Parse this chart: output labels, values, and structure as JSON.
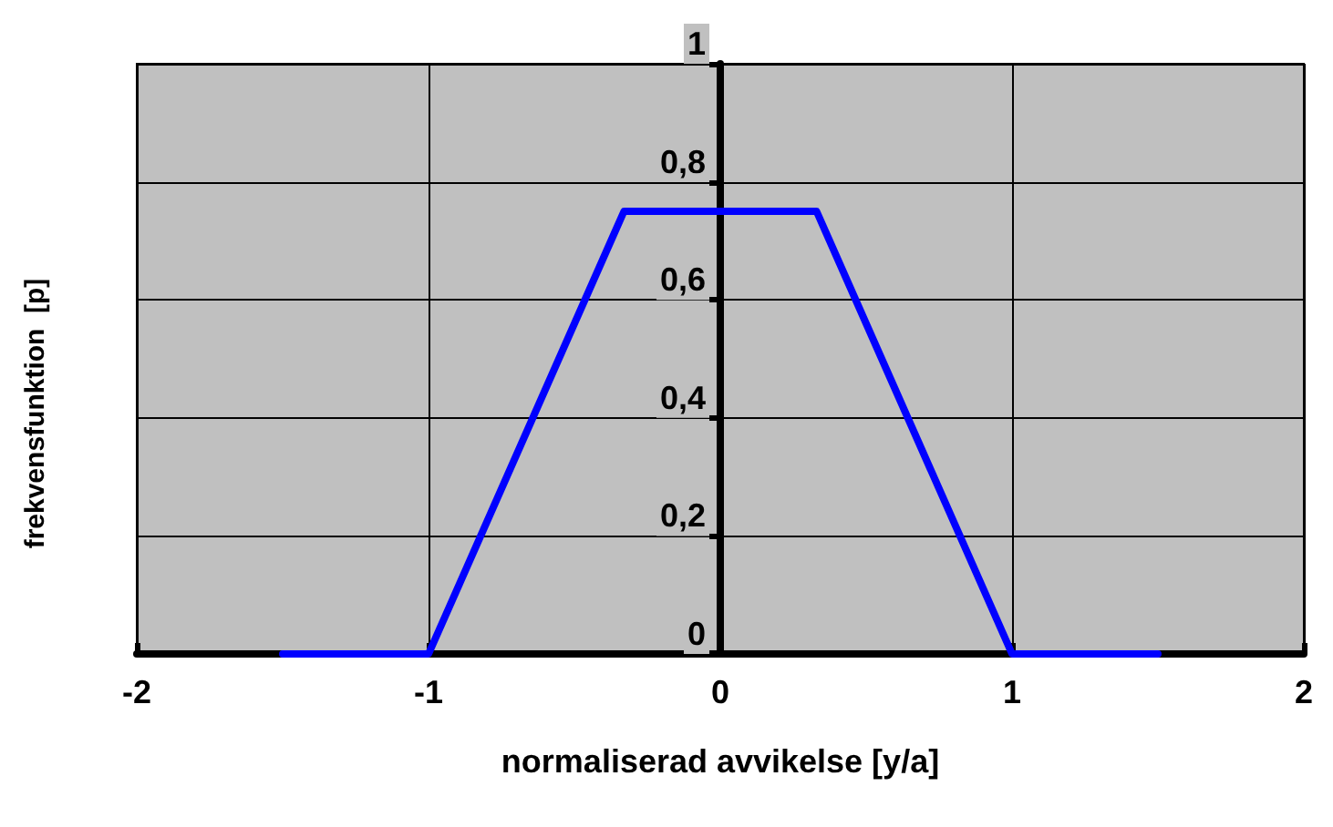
{
  "chart_data": {
    "type": "line",
    "xlabel": "normaliserad avvikelse [y/a]",
    "ylabel": "frekvensfunktion  [p]",
    "x": [
      -1.5,
      -1,
      -0.33,
      0.33,
      1,
      1.5
    ],
    "series": [
      {
        "color": "#0000ff",
        "values": [
          0,
          0,
          0.75,
          0.75,
          0,
          0
        ]
      }
    ],
    "xlim": [
      -2,
      2
    ],
    "xticks": [
      -2,
      -1,
      0,
      1,
      2
    ],
    "ylim": [
      0,
      1
    ],
    "yticks": [
      0,
      {
        "value": 0.2,
        "label": "0,2"
      },
      {
        "value": 0.4,
        "label": "0,4"
      },
      {
        "value": 0.6,
        "label": "0,6"
      },
      {
        "value": 0.8,
        "label": "0,8"
      },
      1
    ],
    "grid": true,
    "marker": "none",
    "line_style": "solid"
  }
}
